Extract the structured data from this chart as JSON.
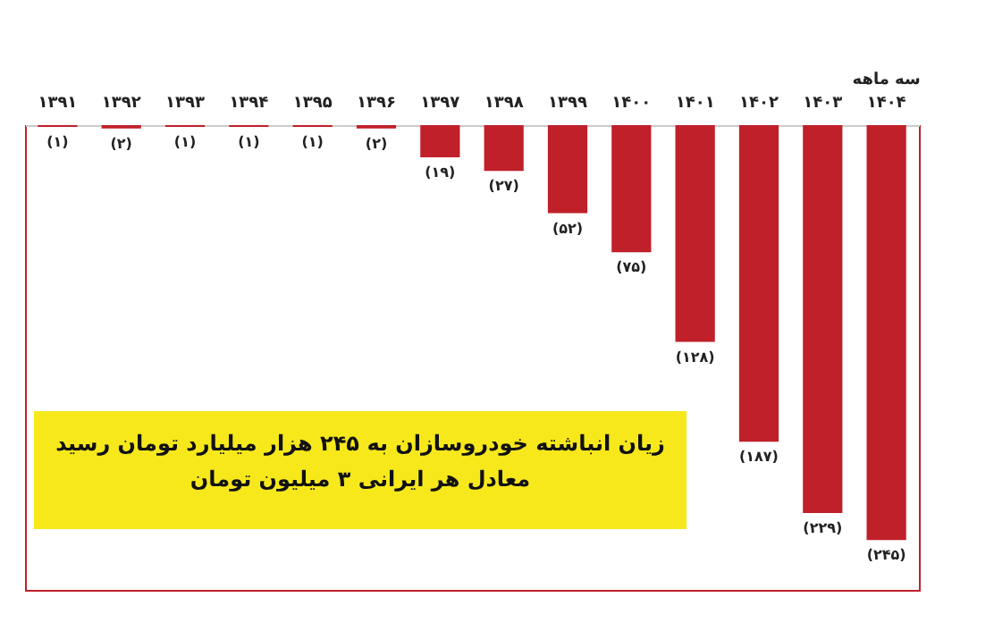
{
  "chart_data": {
    "type": "bar",
    "categories": [
      "۱۳۹۱",
      "۱۳۹۲",
      "۱۳۹۳",
      "۱۳۹۴",
      "۱۳۹۵",
      "۱۳۹۶",
      "۱۳۹۷",
      "۱۳۹۸",
      "۱۳۹۹",
      "۱۴۰۰",
      "۱۴۰۱",
      "۱۴۰۲",
      "۱۴۰۳",
      "سه ماهه\n۱۴۰۴"
    ],
    "values": [
      -1,
      -2,
      -1,
      -1,
      -1,
      -2,
      -19,
      -27,
      -52,
      -75,
      -128,
      -187,
      -229,
      -245
    ],
    "value_labels": [
      "(۱)",
      "(۲)",
      "(۱)",
      "(۱)",
      "(۱)",
      "(۲)",
      "(۱۹)",
      "(۲۷)",
      "(۵۲)",
      "(۷۵)",
      "(۱۲۸)",
      "(۱۸۷)",
      "(۲۲۹)",
      "(۲۴۵)"
    ],
    "color": "#c0202a",
    "annotations": [
      "زیان انباشته خودروسازان به ۲۴۵ هزار میلیارد تومان رسید",
      "معادل هر ایرانی ۳ میلیون تومان"
    ],
    "grid": false
  }
}
